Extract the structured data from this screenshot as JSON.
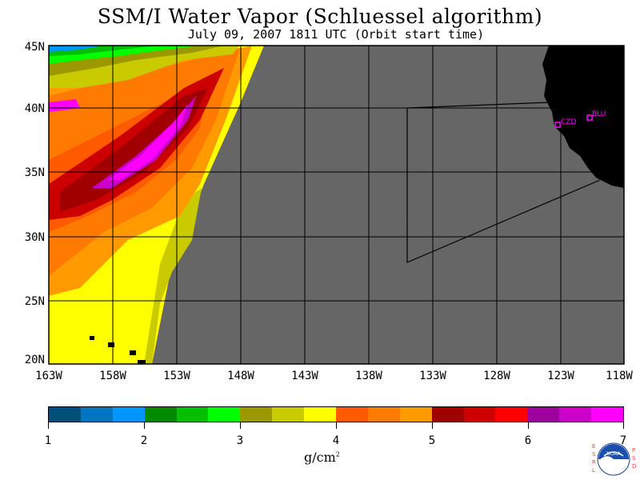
{
  "header": {
    "title": "SSM/I Water Vapor (Schluessel algorithm)",
    "subtitle": "July 09, 2007  1811 UTC  (Orbit start time)"
  },
  "map": {
    "y_labels": [
      "45N",
      "40N",
      "35N",
      "30N",
      "25N",
      "20N"
    ],
    "x_labels": [
      "163W",
      "158W",
      "153W",
      "148W",
      "143W",
      "138W",
      "133W",
      "128W",
      "123W",
      "118W"
    ],
    "sites": [
      {
        "label": "CZD"
      },
      {
        "label": "BLU"
      }
    ],
    "colors": {
      "no_data": "#666666",
      "land": "#000000",
      "grid": "#000000",
      "site_marker": "#ff00ff"
    }
  },
  "colorbar": {
    "ticks": [
      "1",
      "2",
      "3",
      "4",
      "5",
      "6",
      "7"
    ],
    "units_base": "g/cm",
    "units_exp": "2",
    "colors": [
      "#00507a",
      "#0076c2",
      "#0096ff",
      "#008a00",
      "#00c000",
      "#00ff00",
      "#9a9a00",
      "#caca00",
      "#ffff00",
      "#ff5a00",
      "#ff7a00",
      "#ff9a00",
      "#a00000",
      "#cc0000",
      "#ff0000",
      "#a000a0",
      "#cc00cc",
      "#ff00ff"
    ]
  },
  "logo": {
    "left_letters": "ESRL",
    "right_letters": "PSD",
    "center_text": "NOAA"
  }
}
